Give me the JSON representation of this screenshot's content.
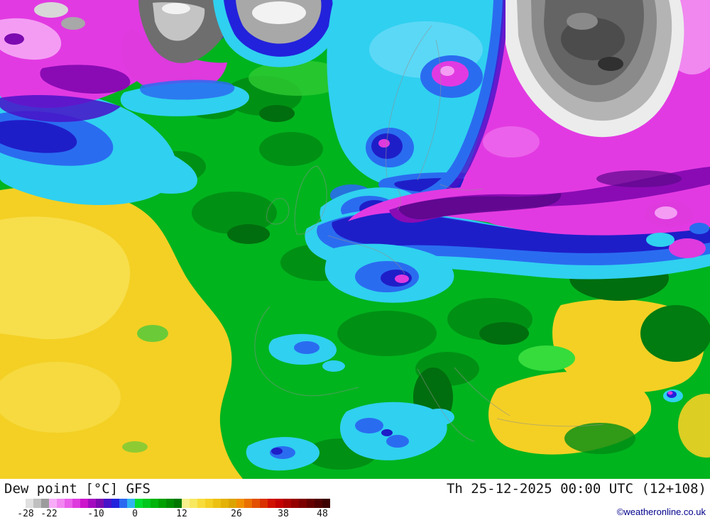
{
  "footer": {
    "title": "Dew point [°C] GFS",
    "timestamp": "Th 25-12-2025 00:00 UTC (12+108)",
    "copyright": "©weatheronline.co.uk",
    "legend": {
      "min": -30,
      "max": 50,
      "unit": "°C",
      "ticks": [
        -28,
        -22,
        -10,
        0,
        12,
        26,
        38,
        48
      ],
      "colors": [
        "#ffffff",
        "#e0e0e0",
        "#c0c0c0",
        "#9c9c9c",
        "#f8acf8",
        "#f287f2",
        "#ea5fea",
        "#de3ade",
        "#cc14cc",
        "#a40ac0",
        "#7c0ab0",
        "#4812c8",
        "#2222dc",
        "#2a68f0",
        "#30b4f0",
        "#00dc32",
        "#00c81e",
        "#00b40a",
        "#00a000",
        "#008c00",
        "#007800",
        "#f8f08c",
        "#f8e860",
        "#f8dc3c",
        "#f4d024",
        "#ecc112",
        "#e4b206",
        "#dca400",
        "#f09000",
        "#ea7000",
        "#e25000",
        "#da3000",
        "#d01000",
        "#c40000",
        "#ac0000",
        "#940000",
        "#7c0000",
        "#640000",
        "#500000",
        "#3c0000"
      ]
    }
  },
  "map": {
    "kind": "dew point filled-contour forecast map, Europe / North Atlantic",
    "model": "GFS"
  }
}
